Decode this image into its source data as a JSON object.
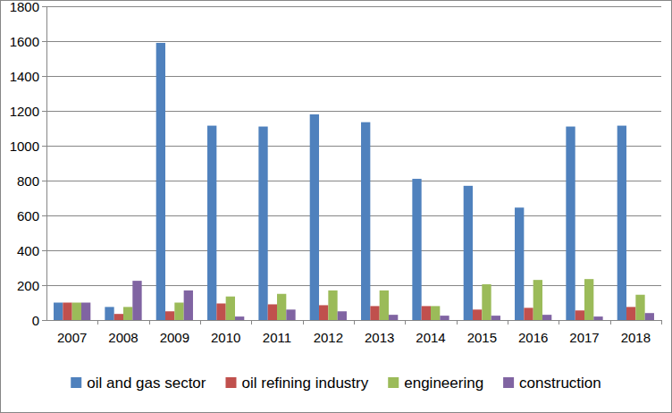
{
  "chart_data": {
    "type": "bar",
    "categories": [
      "2007",
      "2008",
      "2009",
      "2010",
      "2011",
      "2012",
      "2013",
      "2014",
      "2015",
      "2016",
      "2017",
      "2018"
    ],
    "series": [
      {
        "name": "oil and gas sector",
        "color": "#4f81bd",
        "values": [
          100,
          75,
          1590,
          1115,
          1110,
          1180,
          1135,
          810,
          770,
          645,
          1110,
          1115
        ]
      },
      {
        "name": "oil refining industry",
        "color": "#c0504d",
        "values": [
          100,
          35,
          50,
          95,
          90,
          85,
          80,
          80,
          60,
          70,
          55,
          75
        ]
      },
      {
        "name": "engineering",
        "color": "#9bbb59",
        "values": [
          100,
          75,
          100,
          135,
          150,
          170,
          170,
          80,
          205,
          230,
          235,
          145
        ]
      },
      {
        "name": "construction",
        "color": "#8064a2",
        "values": [
          100,
          225,
          170,
          20,
          60,
          50,
          30,
          25,
          25,
          30,
          20,
          40
        ]
      }
    ],
    "ylim": [
      0,
      1800
    ],
    "yticks": [
      0,
      200,
      400,
      600,
      800,
      1000,
      1200,
      1400,
      1600,
      1800
    ],
    "grid": true,
    "legend": "bottom"
  }
}
